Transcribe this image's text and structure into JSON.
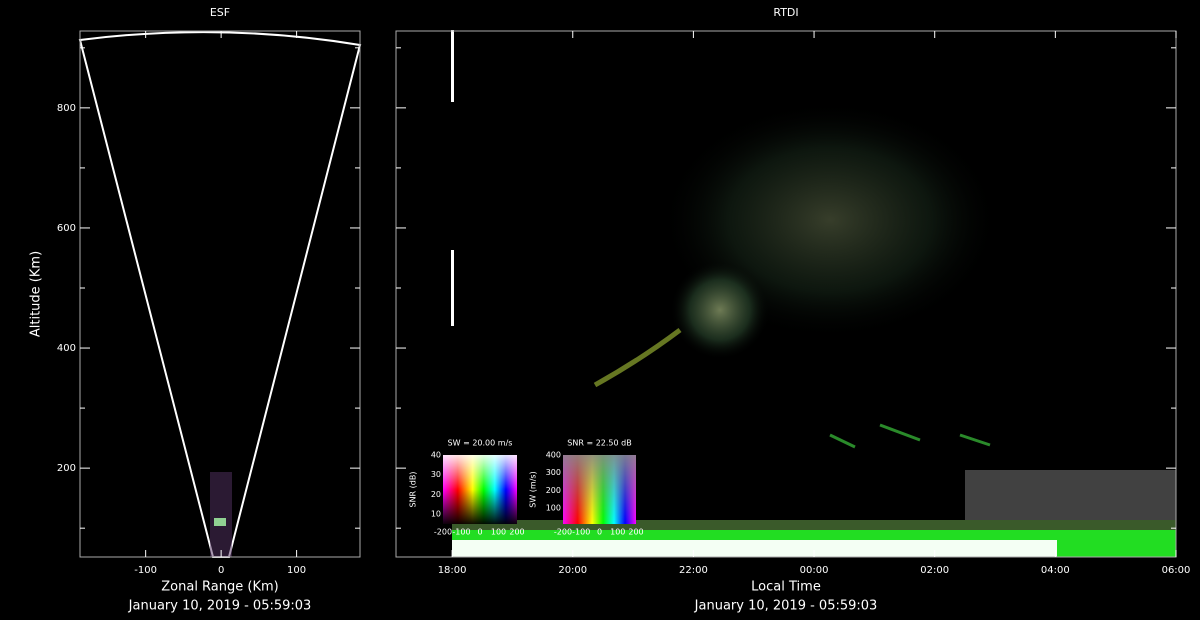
{
  "chart_data": [
    {
      "type": "esf",
      "title": "ESF",
      "xlabel": "Zonal Range (Km)",
      "ylabel": "Altitude (Km)",
      "footer": "January 10, 2019 - 05:59:03",
      "xlim": [
        -187,
        184
      ],
      "xticks": [
        -100,
        0,
        100
      ],
      "ylim": [
        52,
        928
      ],
      "yticks": [
        200,
        400,
        600,
        800
      ],
      "yticks_minor": [
        100,
        300,
        500,
        700,
        900
      ]
    },
    {
      "type": "rtdi",
      "title": "RTDI",
      "xlabel": "Local Time",
      "footer": "January 10, 2019 - 05:59:03",
      "xlim": [
        17.07,
        30
      ],
      "xticks": [
        {
          "value": 18,
          "label": "18:00"
        },
        {
          "value": 20,
          "label": "20:00"
        },
        {
          "value": 22,
          "label": "22:00"
        },
        {
          "value": 24,
          "label": "00:00"
        },
        {
          "value": 26,
          "label": "02:00"
        },
        {
          "value": 28,
          "label": "04:00"
        },
        {
          "value": 30,
          "label": "06:00"
        }
      ],
      "ylim": [
        52,
        928
      ],
      "yticks": [
        200,
        400,
        600,
        800
      ],
      "yticks_minor": [
        100,
        300,
        500,
        700,
        900
      ],
      "insets": [
        {
          "title": "SW = 20.00 m/s",
          "ylabel": "SNR (dB)",
          "ylim": [
            5,
            40
          ],
          "yticks": [
            10,
            20,
            30,
            40
          ],
          "xlim": [
            -200,
            200
          ],
          "xticks": [
            -200,
            -100,
            0,
            100,
            200
          ]
        },
        {
          "title": "SNR = 22.50 dB",
          "ylabel": "SW (m/s)",
          "ylim": [
            10,
            400
          ],
          "yticks": [
            100,
            200,
            300,
            400
          ],
          "xlim": [
            -200,
            200
          ],
          "xticks": [
            -200,
            -100,
            0,
            100,
            200
          ]
        }
      ]
    }
  ]
}
